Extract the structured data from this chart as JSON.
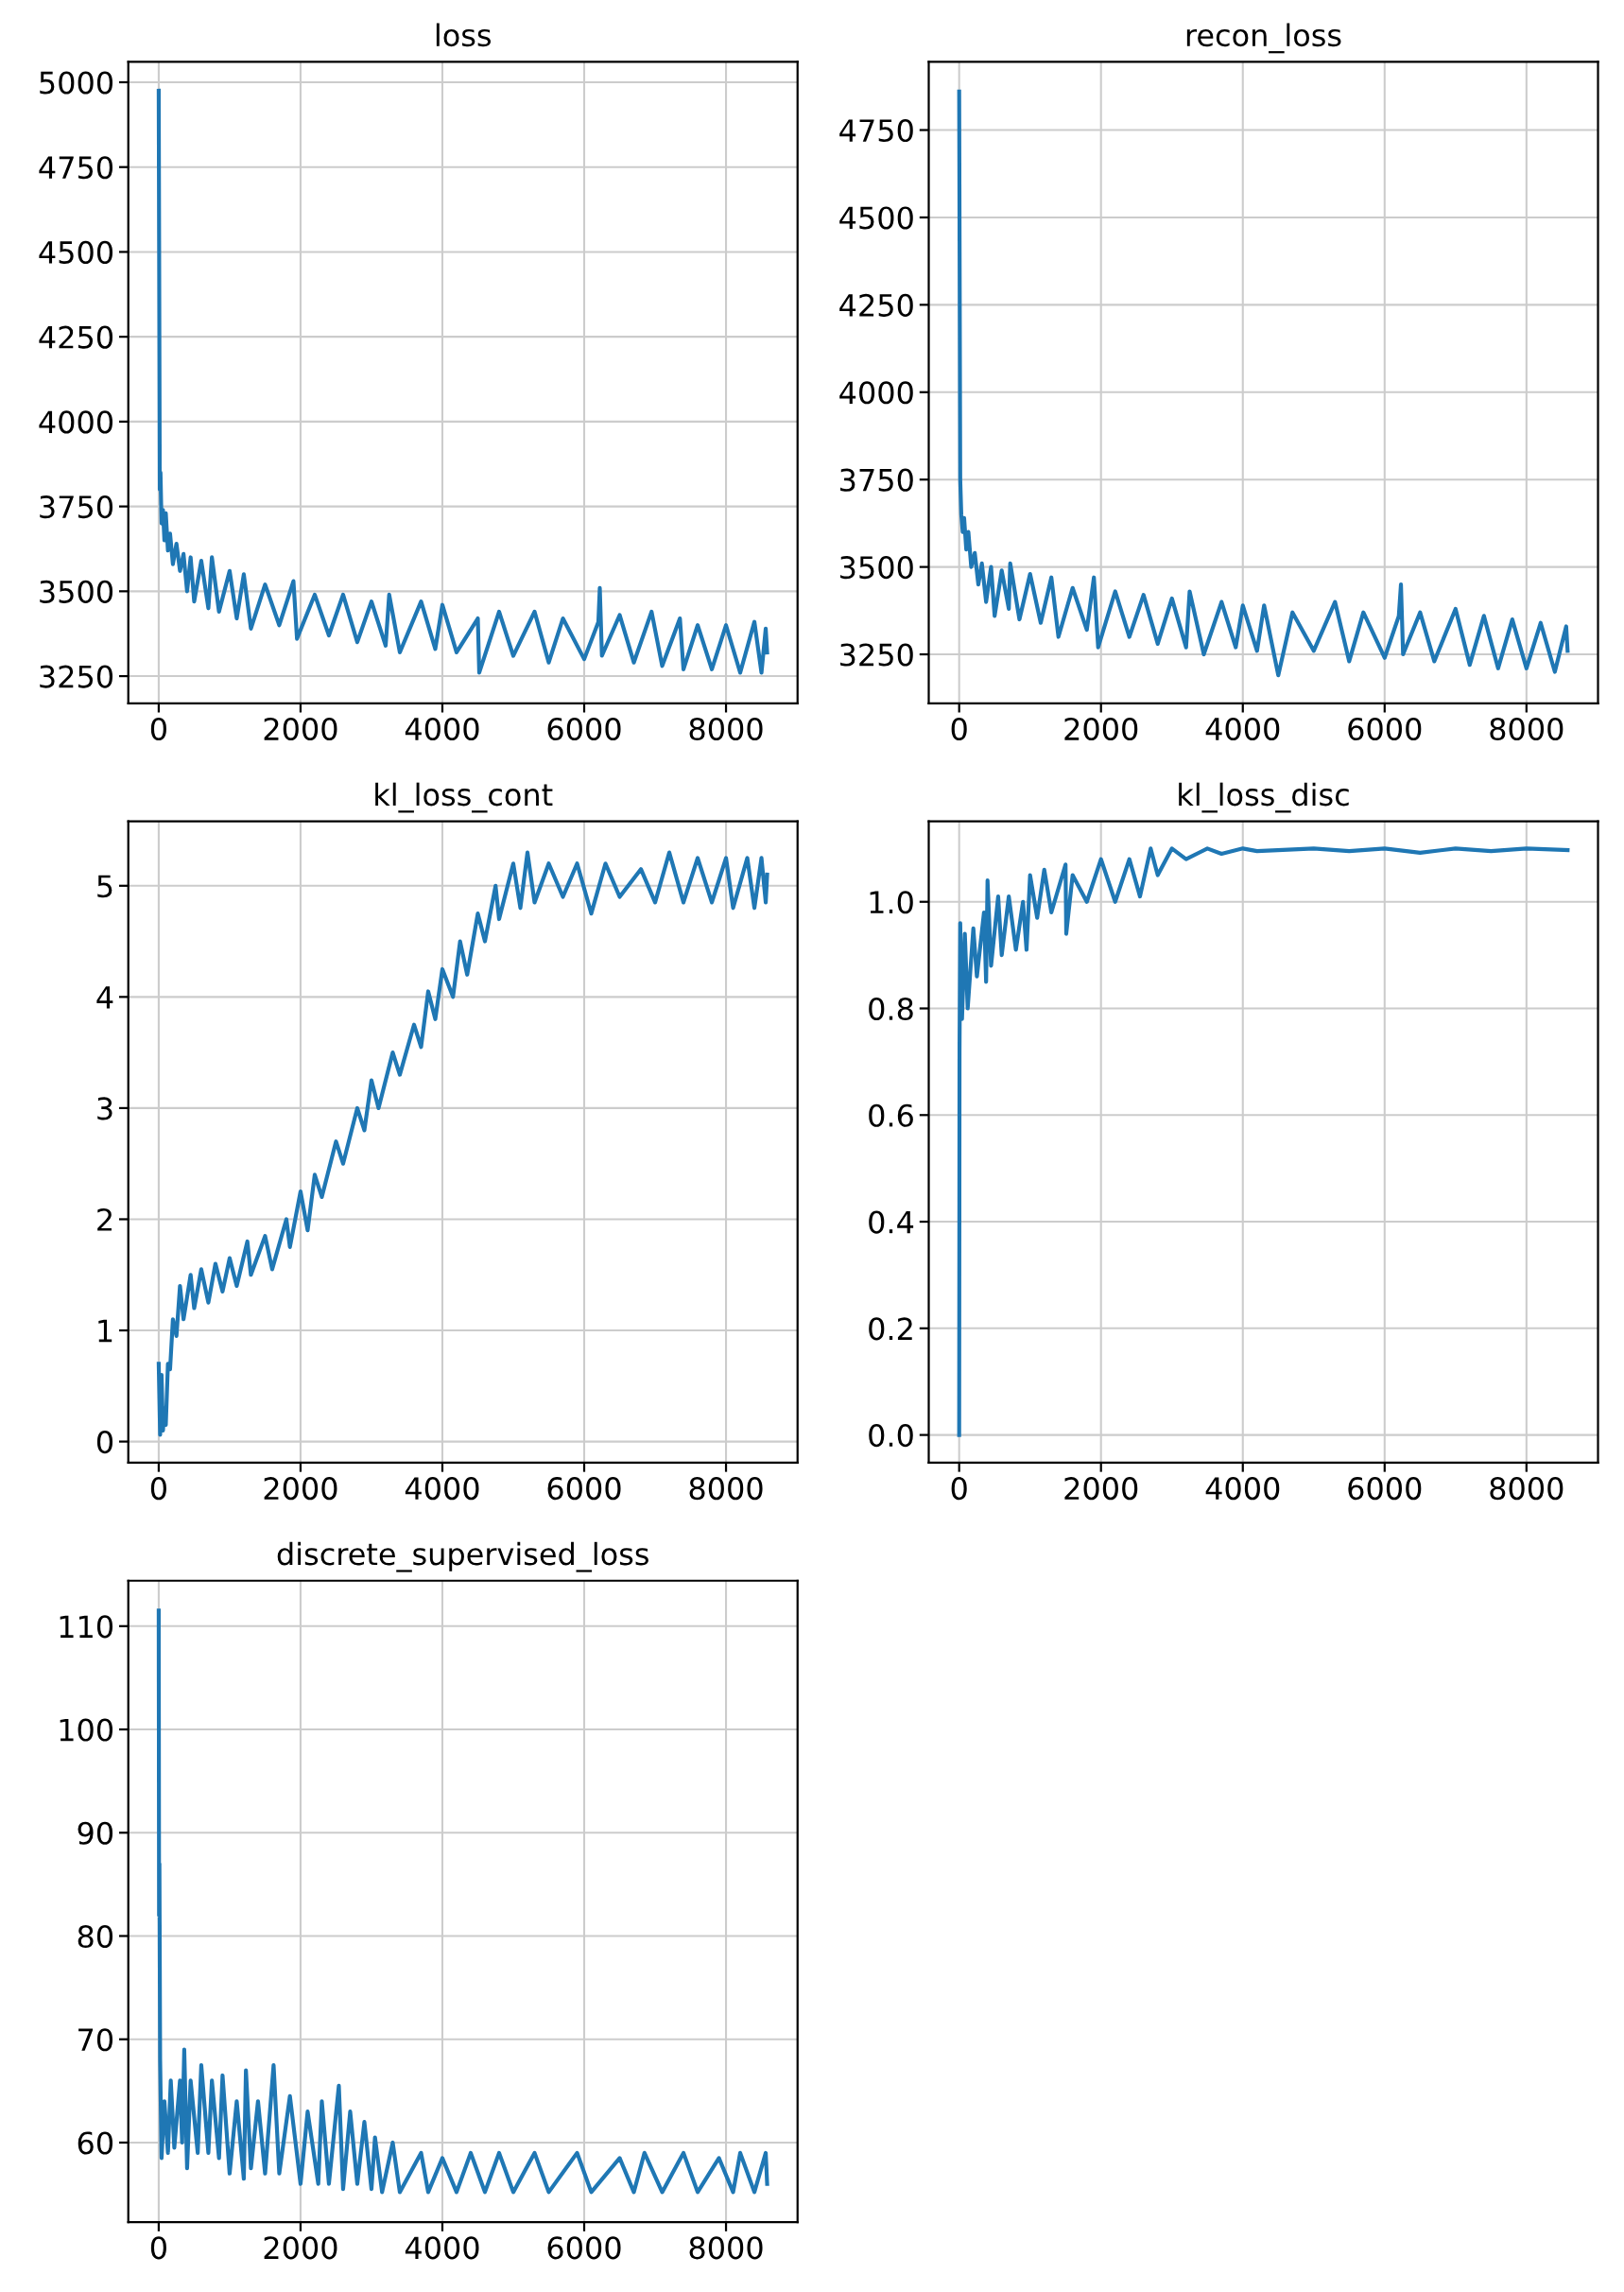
{
  "chart_data": [
    {
      "type": "line",
      "title": "loss",
      "grid": true,
      "xlim": [
        -429,
        9009
      ],
      "ylim": [
        3170,
        5060
      ],
      "xticks": [
        0,
        2000,
        4000,
        6000,
        8000
      ],
      "yticks": [
        3250,
        3500,
        3750,
        4000,
        4250,
        4500,
        4750,
        5000
      ],
      "series": [
        {
          "color": "#1f77b4",
          "x": [
            0,
            15,
            25,
            40,
            60,
            80,
            100,
            130,
            160,
            200,
            250,
            300,
            350,
            400,
            450,
            500,
            600,
            700,
            750,
            850,
            1000,
            1100,
            1200,
            1300,
            1500,
            1700,
            1900,
            1950,
            2200,
            2400,
            2600,
            2800,
            3000,
            3200,
            3250,
            3400,
            3700,
            3900,
            4000,
            4200,
            4500,
            4520,
            4800,
            5000,
            5300,
            5500,
            5700,
            6000,
            6200,
            6220,
            6250,
            6500,
            6700,
            6950,
            7100,
            7350,
            7400,
            7600,
            7800,
            8000,
            8200,
            8400,
            8500,
            8560,
            8580
          ],
          "values": [
            4975,
            3800,
            3850,
            3700,
            3740,
            3650,
            3730,
            3620,
            3670,
            3580,
            3640,
            3560,
            3610,
            3500,
            3600,
            3470,
            3590,
            3450,
            3600,
            3440,
            3560,
            3420,
            3550,
            3390,
            3520,
            3400,
            3530,
            3360,
            3490,
            3370,
            3490,
            3350,
            3470,
            3340,
            3490,
            3320,
            3470,
            3330,
            3460,
            3320,
            3420,
            3260,
            3440,
            3310,
            3440,
            3290,
            3420,
            3300,
            3410,
            3510,
            3310,
            3430,
            3290,
            3440,
            3280,
            3420,
            3270,
            3400,
            3270,
            3400,
            3260,
            3410,
            3260,
            3390,
            3320
          ]
        }
      ]
    },
    {
      "type": "line",
      "title": "recon_loss",
      "grid": true,
      "xlim": [
        -429,
        9009
      ],
      "ylim": [
        3110,
        4945
      ],
      "xticks": [
        0,
        2000,
        4000,
        6000,
        8000
      ],
      "yticks": [
        3250,
        3500,
        3750,
        4000,
        4250,
        4500,
        4750
      ],
      "series": [
        {
          "color": "#1f77b4",
          "x": [
            0,
            15,
            30,
            50,
            70,
            100,
            130,
            170,
            220,
            270,
            320,
            380,
            450,
            500,
            600,
            700,
            720,
            850,
            1000,
            1150,
            1300,
            1400,
            1600,
            1800,
            1900,
            1960,
            2200,
            2400,
            2600,
            2800,
            3000,
            3200,
            3250,
            3450,
            3700,
            3900,
            4000,
            4200,
            4300,
            4500,
            4700,
            5000,
            5300,
            5500,
            5700,
            6000,
            6200,
            6230,
            6260,
            6500,
            6700,
            7000,
            7200,
            7400,
            7600,
            7800,
            8000,
            8200,
            8400,
            8560,
            8580
          ],
          "values": [
            4860,
            3750,
            3650,
            3600,
            3640,
            3550,
            3600,
            3500,
            3540,
            3450,
            3510,
            3400,
            3500,
            3360,
            3490,
            3380,
            3510,
            3350,
            3480,
            3340,
            3470,
            3300,
            3440,
            3320,
            3470,
            3270,
            3430,
            3300,
            3420,
            3280,
            3410,
            3270,
            3430,
            3250,
            3400,
            3270,
            3390,
            3260,
            3390,
            3190,
            3370,
            3260,
            3400,
            3230,
            3370,
            3240,
            3360,
            3450,
            3250,
            3370,
            3230,
            3380,
            3220,
            3360,
            3210,
            3350,
            3210,
            3340,
            3200,
            3330,
            3260
          ]
        }
      ]
    },
    {
      "type": "line",
      "title": "kl_loss_cont",
      "grid": true,
      "xlim": [
        -429,
        9009
      ],
      "ylim": [
        -0.19,
        5.58
      ],
      "xticks": [
        0,
        2000,
        4000,
        6000,
        8000
      ],
      "yticks": [
        0,
        1,
        2,
        3,
        4,
        5
      ],
      "series": [
        {
          "color": "#1f77b4",
          "x": [
            0,
            20,
            40,
            60,
            80,
            100,
            130,
            160,
            200,
            250,
            300,
            350,
            450,
            500,
            600,
            700,
            800,
            900,
            1000,
            1100,
            1250,
            1300,
            1500,
            1600,
            1800,
            1850,
            2000,
            2100,
            2200,
            2300,
            2500,
            2600,
            2800,
            2900,
            3000,
            3100,
            3300,
            3400,
            3600,
            3700,
            3800,
            3900,
            4000,
            4150,
            4250,
            4350,
            4500,
            4600,
            4750,
            4800,
            5000,
            5100,
            5200,
            5300,
            5500,
            5700,
            5900,
            6100,
            6300,
            6500,
            6800,
            7000,
            7200,
            7400,
            7600,
            7800,
            8000,
            8100,
            8300,
            8400,
            8500,
            8560,
            8580
          ],
          "values": [
            0.7,
            0.06,
            0.6,
            0.1,
            0.3,
            0.15,
            0.7,
            0.65,
            1.1,
            0.95,
            1.4,
            1.1,
            1.5,
            1.2,
            1.55,
            1.25,
            1.6,
            1.35,
            1.65,
            1.4,
            1.8,
            1.5,
            1.85,
            1.55,
            2.0,
            1.75,
            2.25,
            1.9,
            2.4,
            2.2,
            2.7,
            2.5,
            3.0,
            2.8,
            3.25,
            3.0,
            3.5,
            3.3,
            3.75,
            3.55,
            4.05,
            3.8,
            4.25,
            4.0,
            4.5,
            4.2,
            4.75,
            4.5,
            5.0,
            4.7,
            5.2,
            4.8,
            5.3,
            4.85,
            5.2,
            4.9,
            5.2,
            4.75,
            5.2,
            4.9,
            5.15,
            4.85,
            5.3,
            4.85,
            5.25,
            4.85,
            5.25,
            4.8,
            5.25,
            4.8,
            5.25,
            4.85,
            5.1
          ]
        }
      ]
    },
    {
      "type": "line",
      "title": "kl_loss_disc",
      "grid": true,
      "xlim": [
        -429,
        9009
      ],
      "ylim": [
        -0.052,
        1.151
      ],
      "xticks": [
        0,
        2000,
        4000,
        6000,
        8000
      ],
      "yticks": [
        {
          "value": 0,
          "label": "0.0"
        },
        0.2,
        0.4,
        0.6,
        0.8,
        {
          "value": 1,
          "label": "1.0"
        }
      ],
      "series": [
        {
          "color": "#1f77b4",
          "x": [
            0,
            5,
            15,
            40,
            80,
            120,
            200,
            250,
            350,
            380,
            400,
            450,
            550,
            600,
            700,
            800,
            900,
            950,
            1000,
            1100,
            1200,
            1300,
            1500,
            1510,
            1600,
            1800,
            2000,
            2200,
            2400,
            2550,
            2700,
            2800,
            3000,
            3200,
            3500,
            3700,
            4000,
            4200,
            5000,
            5500,
            6000,
            6500,
            7000,
            7500,
            8000,
            8580
          ],
          "values": [
            0.0,
            0.72,
            0.96,
            0.78,
            0.94,
            0.8,
            0.95,
            0.86,
            0.98,
            0.85,
            1.04,
            0.88,
            1.01,
            0.9,
            1.01,
            0.91,
            1.0,
            0.91,
            1.05,
            0.97,
            1.06,
            0.98,
            1.07,
            0.94,
            1.05,
            1.0,
            1.08,
            1.0,
            1.08,
            1.01,
            1.1,
            1.05,
            1.1,
            1.08,
            1.1,
            1.09,
            1.1,
            1.095,
            1.1,
            1.095,
            1.1,
            1.092,
            1.1,
            1.095,
            1.1,
            1.097
          ]
        }
      ]
    },
    {
      "type": "line",
      "title": "discrete_supervised_loss",
      "grid": true,
      "xlim": [
        -429,
        9009
      ],
      "ylim": [
        52.3,
        114.4
      ],
      "xticks": [
        0,
        2000,
        4000,
        6000,
        8000
      ],
      "yticks": [
        60,
        70,
        80,
        90,
        100,
        110
      ],
      "series": [
        {
          "color": "#1f77b4",
          "x": [
            0,
            5,
            10,
            20,
            40,
            80,
            130,
            170,
            220,
            300,
            330,
            360,
            400,
            450,
            550,
            600,
            700,
            750,
            850,
            900,
            1000,
            1100,
            1200,
            1230,
            1300,
            1400,
            1500,
            1620,
            1700,
            1850,
            2000,
            2100,
            2250,
            2300,
            2400,
            2540,
            2600,
            2700,
            2800,
            2900,
            3000,
            3050,
            3150,
            3300,
            3400,
            3700,
            3800,
            4000,
            4200,
            4400,
            4600,
            4800,
            5000,
            5300,
            5500,
            5900,
            6100,
            6500,
            6700,
            6850,
            7100,
            7400,
            7600,
            7900,
            8100,
            8200,
            8400,
            8560,
            8580
          ],
          "values": [
            111.5,
            82,
            87,
            68,
            58.5,
            64,
            59,
            66,
            59.5,
            66,
            60,
            69,
            57.5,
            66,
            59,
            67.5,
            59,
            66,
            58.5,
            66.5,
            57,
            64,
            56.5,
            67,
            57.5,
            64,
            57,
            67.5,
            57,
            64.5,
            56,
            63,
            56,
            64,
            56,
            65.5,
            55.5,
            63,
            56,
            62,
            55.5,
            60.5,
            55.2,
            60,
            55.2,
            59,
            55.2,
            58.5,
            55.2,
            59,
            55.2,
            59,
            55.2,
            59,
            55.2,
            59,
            55.2,
            58.5,
            55.2,
            59,
            55.2,
            59,
            55.2,
            58.5,
            55.2,
            59,
            55.2,
            59,
            56
          ]
        }
      ]
    }
  ]
}
